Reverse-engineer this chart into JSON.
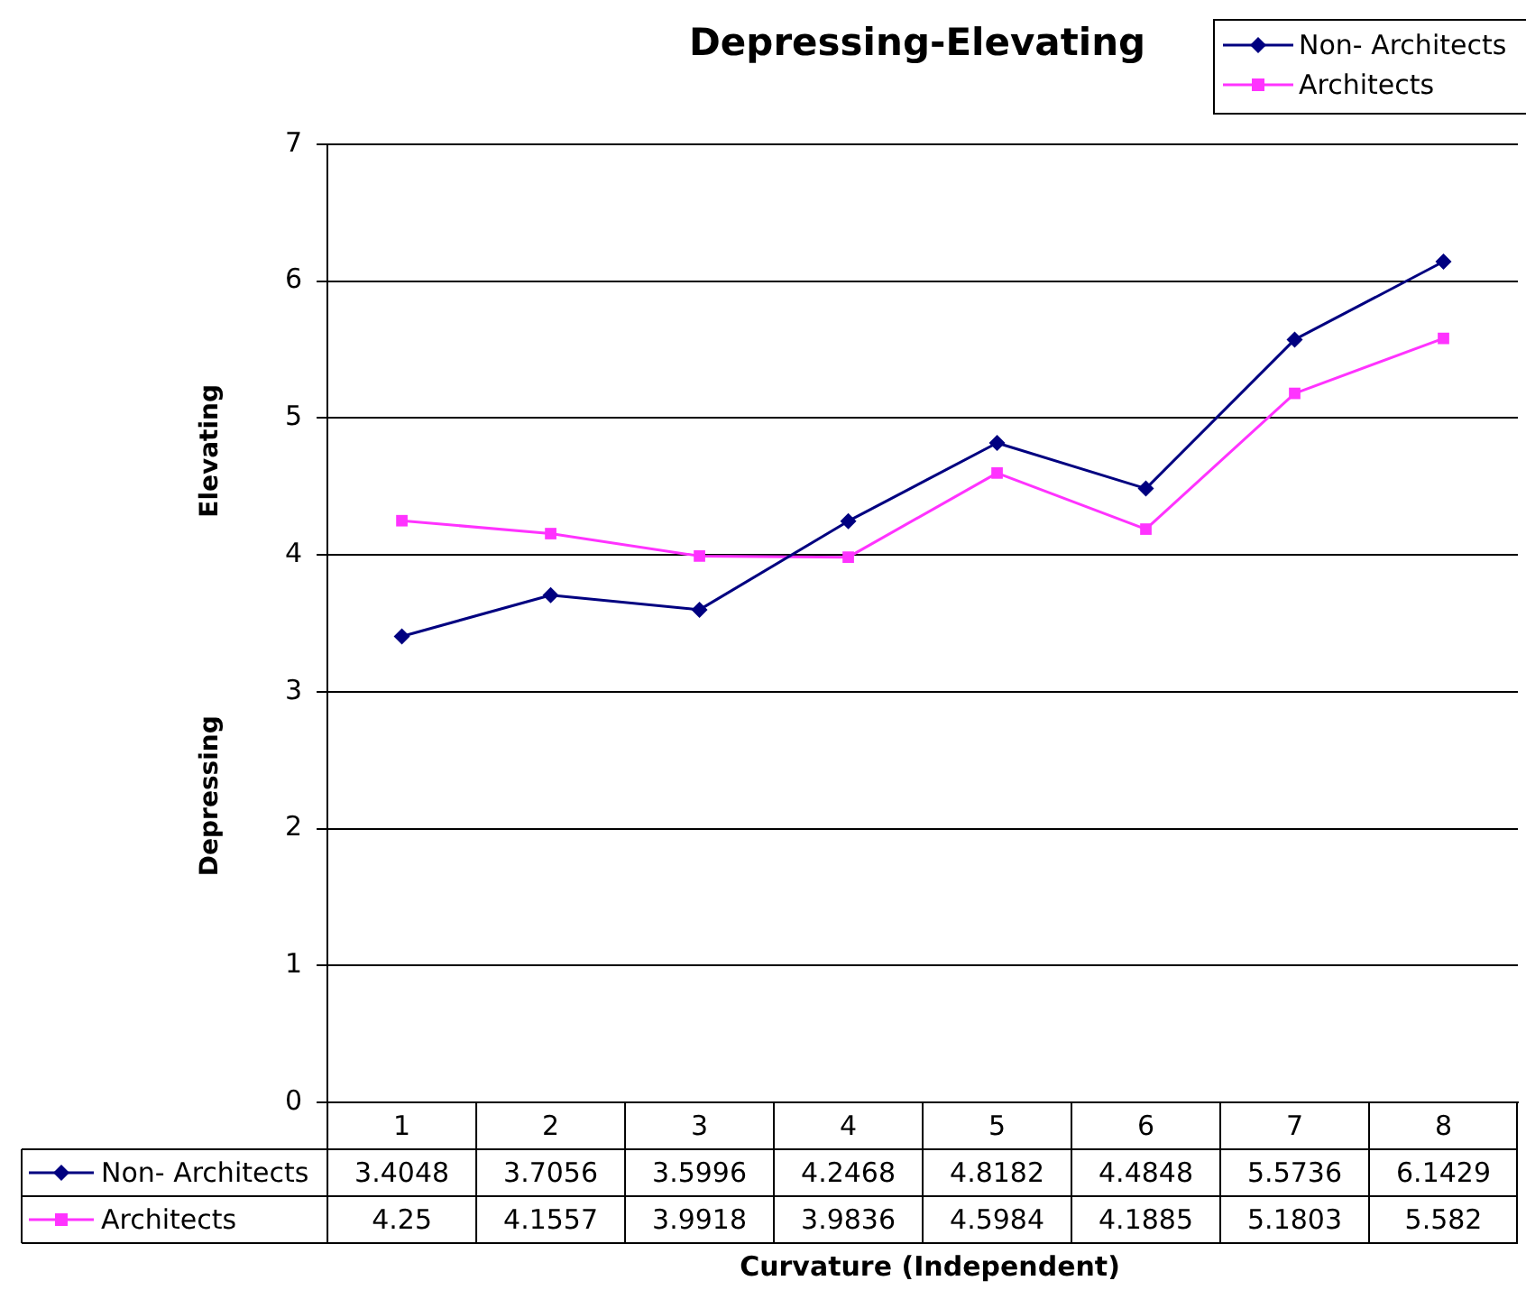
{
  "chart_data": {
    "type": "line",
    "title": "Depressing-Elevating",
    "xlabel": "Curvature (Independent)",
    "annotations": [
      "Elevating",
      "Depressing"
    ],
    "categories": [
      "1",
      "2",
      "3",
      "4",
      "5",
      "6",
      "7",
      "8"
    ],
    "series": [
      {
        "name": "Non- Architects",
        "color": "#000080",
        "marker": "diamond",
        "values": [
          3.4048,
          3.7056,
          3.5996,
          4.2468,
          4.8182,
          4.4848,
          5.5736,
          6.1429
        ]
      },
      {
        "name": "Architects",
        "color": "#ff33ff",
        "marker": "square",
        "values": [
          4.25,
          4.1557,
          3.9918,
          3.9836,
          4.5984,
          4.1885,
          5.1803,
          5.582
        ]
      }
    ],
    "ylim": [
      0,
      7
    ],
    "yticks": [
      0,
      1,
      2,
      3,
      4,
      5,
      6,
      7
    ],
    "grid": "y",
    "legend": "top right",
    "data_labels": true,
    "line_style": "solid"
  }
}
